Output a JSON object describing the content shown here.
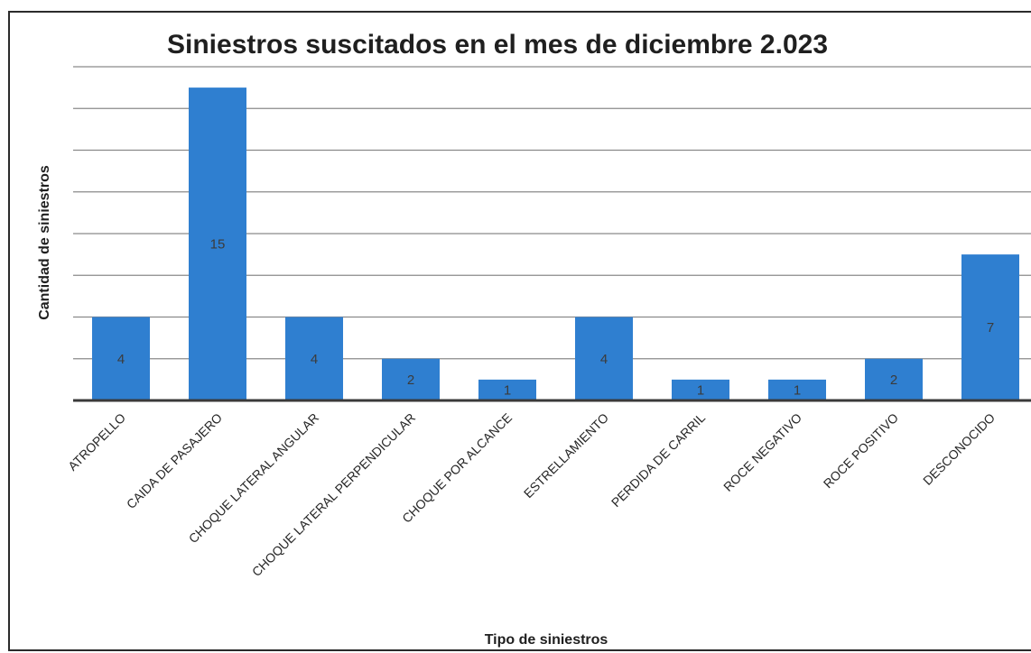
{
  "chart_data": {
    "type": "bar",
    "title": "Siniestros suscitados en el mes de diciembre 2.023",
    "xlabel": "Tipo de siniestros",
    "ylabel": "Cantidad de siniestros",
    "categories": [
      "ATROPELLO",
      "CAIDA DE PASAJERO",
      "CHOQUE LATERAL ANGULAR",
      "CHOQUE LATERAL PERPENDICULAR",
      "CHOQUE POR ALCANCE",
      "ESTRELLAMIENTO",
      "PERDIDA DE CARRIL",
      "ROCE NEGATIVO",
      "ROCE POSITIVO",
      "DESCONOCIDO"
    ],
    "values": [
      4,
      15,
      4,
      2,
      1,
      4,
      1,
      1,
      2,
      7
    ],
    "ylim": [
      0,
      16
    ],
    "grid": true,
    "legend": "none",
    "bar_color": "#2f7fd0",
    "data_labels": true
  }
}
